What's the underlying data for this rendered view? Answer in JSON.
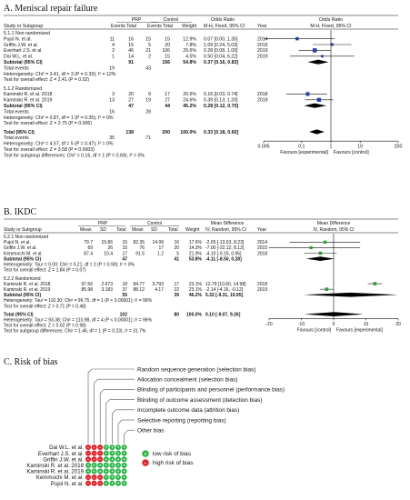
{
  "panel_a": {
    "title": "A. Meniscal repair failure",
    "headers": {
      "study": "Study or Subgroup",
      "group1": "PRP",
      "group2": "Control",
      "events": "Events",
      "total": "Total",
      "weight": "Weight",
      "effect_title": "Odds Ratio",
      "effect_sub": "M-H, Fixed, 95% CI",
      "year": "Year",
      "plot_title": "Odds Ratio",
      "plot_sub": "M-H, Fixed, 95% CI"
    },
    "subgroups": [
      {
        "label": "5.1.1 Non randomized",
        "studies": [
          {
            "name": "Pujol N. et al.",
            "e1": "11",
            "t1": "16",
            "e2": "15",
            "t2": "15",
            "weight": "12.9%",
            "ci": "0.07 [0.00, 1.35]",
            "year": "2014",
            "est": 0.07,
            "lo": 0.005,
            "hi": 1.35
          },
          {
            "name": "Griffin J.W. et al.",
            "e1": "4",
            "t1": "15",
            "e2": "5",
            "t2": "20",
            "weight": "7.8%",
            "ci": "1.09 [0.24, 5.03]",
            "year": "2015",
            "est": 1.09,
            "lo": 0.24,
            "hi": 5.03
          },
          {
            "name": "Everhart J.S. et al.",
            "e1": "3",
            "t1": "46",
            "e2": "21",
            "t2": "106",
            "weight": "29.6%",
            "ci": "0.28 [0.08, 1.00]",
            "year": "2019",
            "est": 0.28,
            "lo": 0.08,
            "hi": 1.0
          },
          {
            "name": "Dai W.L. et al.",
            "e1": "1",
            "t1": "14",
            "e2": "2",
            "t2": "15",
            "weight": "4.5%",
            "ci": "0.50 [0.04, 6.22]",
            "year": "2019",
            "est": 0.5,
            "lo": 0.04,
            "hi": 6.22
          }
        ],
        "subtotal": {
          "label": "Subtotal (95% CI)",
          "t1": "91",
          "t2": "156",
          "weight": "54.8%",
          "ci": "0.37 [0.16, 0.83]",
          "est": 0.37,
          "lo": 0.16,
          "hi": 0.83
        },
        "total_events": {
          "label": "Total events",
          "e1": "19",
          "e2": "43"
        },
        "heterogeneity": "Heterogeneity: Chi² = 3.41, df = 3 (P = 0.33); I² = 12%",
        "overall": "Test for overall effect: Z = 2.41 (P = 0.02)"
      },
      {
        "label": "5.1.2 Randomized",
        "studies": [
          {
            "name": "Kaminski R. et al. 2018",
            "e1": "3",
            "t1": "20",
            "e2": "9",
            "t2": "17",
            "weight": "20.6%",
            "ci": "0.16 [0.03, 0.74]",
            "year": "2018",
            "est": 0.16,
            "lo": 0.03,
            "hi": 0.74
          },
          {
            "name": "Kaminski R. et al. 2019",
            "e1": "13",
            "t1": "27",
            "e2": "19",
            "t2": "27",
            "weight": "24.6%",
            "ci": "0.39 [0.13, 1.20]",
            "year": "2019",
            "est": 0.39,
            "lo": 0.13,
            "hi": 1.2
          }
        ],
        "subtotal": {
          "label": "Subtotal (95% CI)",
          "t1": "47",
          "t2": "44",
          "weight": "45.2%",
          "ci": "0.28 [0.12, 0.70]",
          "est": 0.28,
          "lo": 0.12,
          "hi": 0.7
        },
        "total_events": {
          "label": "Total events",
          "e1": "16",
          "e2": "28"
        },
        "heterogeneity": "Heterogeneity: Chi² = 0.87, df = 1 (P = 0.35); I² = 0%",
        "overall": "Test for overall effect: Z = 2.75 (P = 0.006)"
      }
    ],
    "total": {
      "label": "Total (95% CI)",
      "t1": "138",
      "t2": "200",
      "weight": "100.0%",
      "ci": "0.33 [0.18, 0.60]",
      "est": 0.33,
      "lo": 0.18,
      "hi": 0.6
    },
    "total_events": {
      "label": "Total events",
      "e1": "35",
      "e2": "71"
    },
    "footer": [
      "Heterogeneity: Chi² = 4.57, df = 5 (P = 0.47); I² = 0%",
      "Test for overall effect: Z = 3.58 (P = 0.0003)",
      "Test for subgroup differences: Chi² = 0.16, df = 1 (P = 0.69), I² = 0%"
    ],
    "axis": {
      "scale": "log",
      "range": [
        0.005,
        200
      ],
      "ticks": [
        "0.005",
        "0.1",
        "1",
        "10",
        "200"
      ],
      "tick_values": [
        0.005,
        0.1,
        1,
        10,
        200
      ],
      "left_label": "Favours [experimental]",
      "right_label": "Favours [control]"
    },
    "colors": {
      "marker": "#2b3f9e",
      "diamond": "#000000"
    }
  },
  "panel_b": {
    "title": "B. IKDC",
    "headers": {
      "study": "Study or Subgroup",
      "group1": "PRP",
      "group2": "Control",
      "mean": "Mean",
      "sd": "SD",
      "total": "Total",
      "weight": "Weight",
      "effect_title": "Mean Difference",
      "effect_sub": "IV, Random, 95% CI",
      "year": "Year",
      "plot_title": "Mean Difference",
      "plot_sub": "IV, Random, 95% CI"
    },
    "subgroups": [
      {
        "label": "5.2.1 Non randomized",
        "studies": [
          {
            "name": "Pujol N. et al.",
            "m1": "79.7",
            "sd1": "15.86",
            "t1": "15",
            "m2": "82.35",
            "sd2": "14.99",
            "t2": "16",
            "weight": "17.6%",
            "ci": "-2.65 [-13.63, 8.23]",
            "year": "2014",
            "est": -2.65,
            "lo": -13.63,
            "hi": 8.23
          },
          {
            "name": "Griffin J.W. et al.",
            "m1": "69",
            "sd1": "26",
            "t1": "15",
            "m2": "76",
            "sd2": "17",
            "t2": "20",
            "weight": "14.3%",
            "ci": "-7.00 [-22.12, 8.12]",
            "year": "2015",
            "est": -7.0,
            "lo": -22.12,
            "hi": 8.12
          },
          {
            "name": "Kemmochi M. et al.",
            "m1": "87.4",
            "sd1": "10.4",
            "t1": "17",
            "m2": "91.5",
            "sd2": "1.2",
            "t2": "5",
            "weight": "21.9%",
            "ci": "-4.10 [-9.15, 0.95]",
            "year": "2018",
            "est": -4.1,
            "lo": -9.15,
            "hi": 0.95
          }
        ],
        "subtotal": {
          "label": "Subtotal (95% CI)",
          "t1": "47",
          "t2": "41",
          "weight": "53.8%",
          "ci": "-4.11 [-8.50, 0.28]",
          "est": -4.11,
          "lo": -8.5,
          "hi": 0.28
        },
        "heterogeneity": "Heterogeneity: Tau² = 0.00; Chi² = 0.21, df = 2 (P = 0.90); I² = 0%",
        "overall": "Test for overall effect: Z = 1.84 (P = 0.07)"
      },
      {
        "label": "5.2.2 Randomized",
        "studies": [
          {
            "name": "Kaminski R. et al. 2018",
            "m1": "97.56",
            "sd1": "2.673",
            "t1": "18",
            "m2": "84.77",
            "sd2": "3.793",
            "t2": "17",
            "weight": "23.1%",
            "ci": "12.79 [10.60, 14.98]",
            "year": "2018",
            "est": 12.79,
            "lo": 10.6,
            "hi": 14.98
          },
          {
            "name": "Kaminski R. et al. 2019",
            "m1": "85.98",
            "sd1": "3.183",
            "t1": "37",
            "m2": "88.12",
            "sd2": "4.17",
            "t2": "22",
            "weight": "23.1%",
            "ci": "-2.14 [-4.16, -0.12]",
            "year": "2019",
            "est": -2.14,
            "lo": -4.16,
            "hi": -0.12
          }
        ],
        "subtotal": {
          "label": "Subtotal (95% CI)",
          "t1": "55",
          "t2": "39",
          "weight": "46.2%",
          "ci": "5.32 [-9.31, 19.95]",
          "est": 5.32,
          "lo": -9.31,
          "hi": 19.95
        },
        "heterogeneity": "Heterogeneity: Tau² = 110.30; Chi² = 96.75, df = 1 (P < 0.00001); I² = 99%",
        "overall": "Test for overall effect: Z = 0.71 (P = 0.48)"
      }
    ],
    "total": {
      "label": "Total (95% CI)",
      "t1": "102",
      "t2": "80",
      "weight": "100.0%",
      "ci": "0.10 [-9.07, 9.26]",
      "est": 0.1,
      "lo": -9.07,
      "hi": 9.26
    },
    "footer": [
      "Heterogeneity: Tau² = 93.38; Chi² = 110.98, df = 4 (P < 0.00001); I² = 96%",
      "Test for overall effect: Z = 0.02 (P = 0.98)",
      "Test for subgroup differences: Chi² = 1.46, df = 1 (P = 0.23), I² = 31.7%"
    ],
    "axis": {
      "scale": "linear",
      "range": [
        -20,
        20
      ],
      "ticks": [
        "-20",
        "-10",
        "0",
        "10",
        "20"
      ],
      "tick_values": [
        -20,
        -10,
        0,
        10,
        20
      ],
      "left_label": "Favours [control]",
      "right_label": "Favours [experimental]"
    },
    "colors": {
      "marker": "#2e9e3a",
      "diamond": "#000000"
    }
  },
  "panel_c": {
    "title": "C. Risk of bias",
    "domains": [
      "Random sequence generation (selection bias)",
      "Allocation concealment (selection bias)",
      "Blinding of participants and personnel (performance bias)",
      "Blinding of outcome assessment (detection bias)",
      "Incomplete outcome data (attrition bias)",
      "Selective reporting (reporting bias)",
      "Other bias"
    ],
    "studies": [
      {
        "name": "Dai W.L. et al.",
        "judgements": [
          "high",
          "high",
          "high",
          "low",
          "low",
          "low",
          "low"
        ]
      },
      {
        "name": "Everhart J.S. et al.",
        "judgements": [
          "high",
          "high",
          "high",
          "low",
          "low",
          "low",
          "low"
        ]
      },
      {
        "name": "Griffin J.W. et al.",
        "judgements": [
          "high",
          "high",
          "high",
          "low",
          "low",
          "low",
          "low"
        ]
      },
      {
        "name": "Kaminski R. et al. 2018",
        "judgements": [
          "low",
          "low",
          "low",
          "low",
          "low",
          "low",
          "low"
        ]
      },
      {
        "name": "Kaminski R. et al. 2019",
        "judgements": [
          "low",
          "low",
          "low",
          "low",
          "low",
          "low",
          "low"
        ]
      },
      {
        "name": "Kemmochi M. et al.",
        "judgements": [
          "high",
          "high",
          "high",
          "low",
          "low",
          "low",
          "low"
        ]
      },
      {
        "name": "Pujol N. et al.",
        "judgements": [
          "high",
          "high",
          "high",
          "low",
          "low",
          "low",
          "low"
        ]
      }
    ],
    "legend": [
      {
        "key": "low",
        "label": "low risk of bias",
        "symbol": "+",
        "color": "#2fb34a"
      },
      {
        "key": "high",
        "label": "high risk of bias",
        "symbol": "−",
        "color": "#d9262c"
      }
    ]
  }
}
